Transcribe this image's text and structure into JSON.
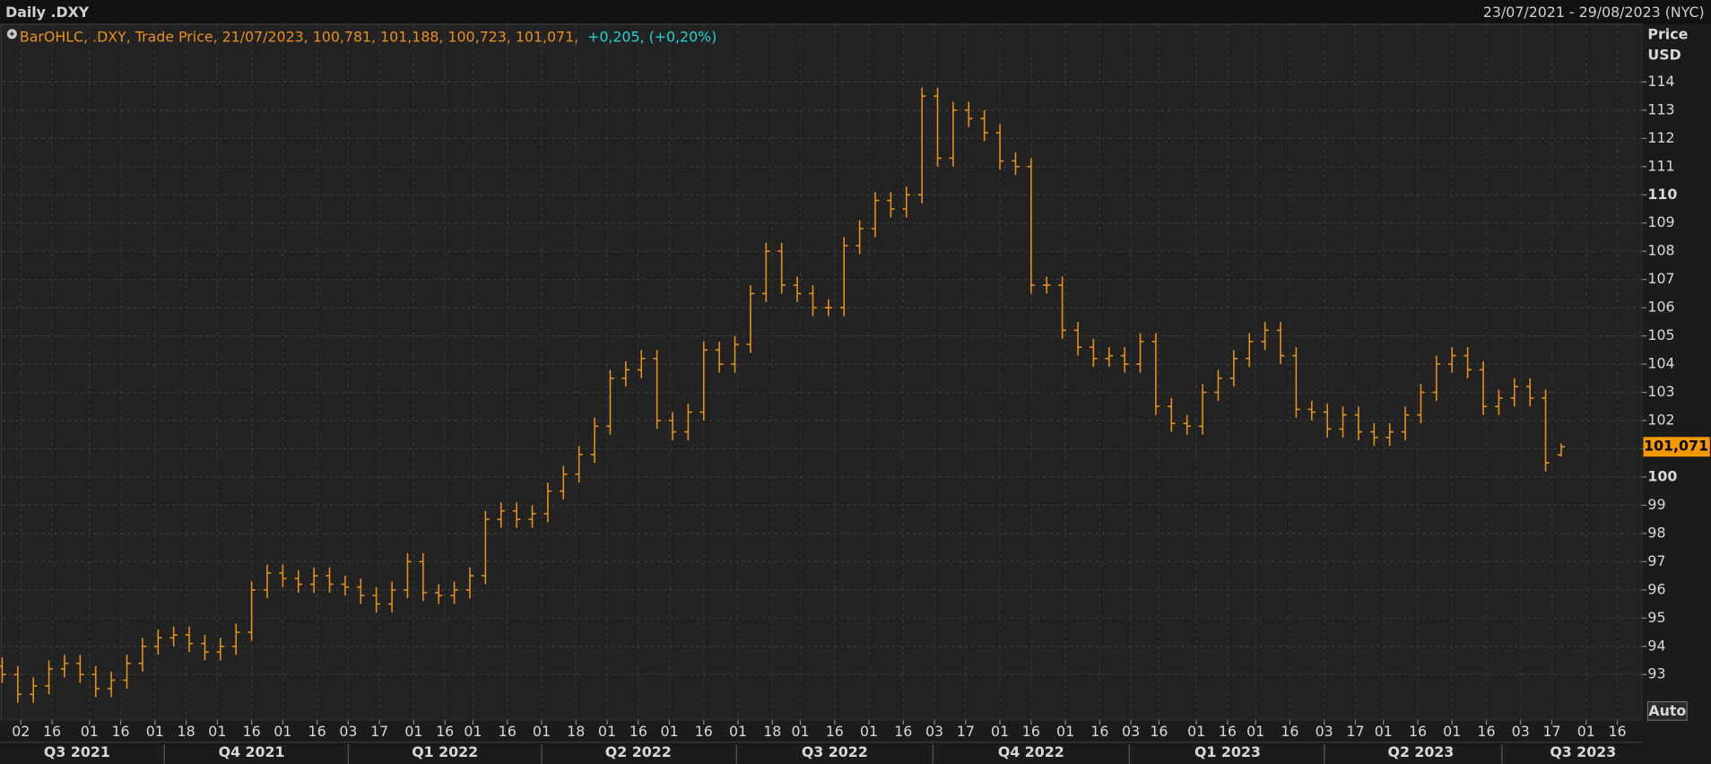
{
  "chart_data": {
    "type": "ohlc",
    "title": "Daily .DXY",
    "date_range": "23/07/2021 - 29/08/2023 (NYC)",
    "legend_text": "BarOHLC, .DXY, Trade Price, 21/07/2023, 100,781, 101,188, 100,723, 101,071,",
    "legend_change": "+0,205, (+0,20%)",
    "y_axis_label": "Price",
    "y_axis_unit": "USD",
    "button": "Auto",
    "color": "#e8901a",
    "grid": true,
    "last_price": {
      "value": 101.071,
      "label": "101,071"
    },
    "ylim": [
      91.38,
      116.05
    ],
    "yticks": [
      93,
      94,
      95,
      96,
      97,
      98,
      99,
      100,
      101,
      102,
      103,
      104,
      105,
      106,
      107,
      108,
      109,
      110,
      111,
      112,
      113,
      114
    ],
    "xlim": [
      0,
      526
    ],
    "xticks": [
      {
        "value": 6,
        "label": "02"
      },
      {
        "value": 16,
        "label": "16"
      },
      {
        "value": 28,
        "label": "01"
      },
      {
        "value": 38,
        "label": "16"
      },
      {
        "value": 49,
        "label": "01"
      },
      {
        "value": 59,
        "label": "18"
      },
      {
        "value": 69,
        "label": "01"
      },
      {
        "value": 80,
        "label": "16"
      },
      {
        "value": 90,
        "label": "01"
      },
      {
        "value": 101,
        "label": "16"
      },
      {
        "value": 111,
        "label": "03"
      },
      {
        "value": 121,
        "label": "17"
      },
      {
        "value": 132,
        "label": "01"
      },
      {
        "value": 142,
        "label": "16"
      },
      {
        "value": 151,
        "label": "01"
      },
      {
        "value": 162,
        "label": "16"
      },
      {
        "value": 173,
        "label": "01"
      },
      {
        "value": 184,
        "label": "18"
      },
      {
        "value": 194,
        "label": "01"
      },
      {
        "value": 204,
        "label": "16"
      },
      {
        "value": 214,
        "label": "01"
      },
      {
        "value": 225,
        "label": "16"
      },
      {
        "value": 236,
        "label": "01"
      },
      {
        "value": 247,
        "label": "18"
      },
      {
        "value": 256,
        "label": "01"
      },
      {
        "value": 267,
        "label": "16"
      },
      {
        "value": 278,
        "label": "01"
      },
      {
        "value": 289,
        "label": "16"
      },
      {
        "value": 299,
        "label": "03"
      },
      {
        "value": 309,
        "label": "17"
      },
      {
        "value": 320,
        "label": "01"
      },
      {
        "value": 330,
        "label": "16"
      },
      {
        "value": 341,
        "label": "01"
      },
      {
        "value": 352,
        "label": "16"
      },
      {
        "value": 362,
        "label": "03"
      },
      {
        "value": 371,
        "label": "16"
      },
      {
        "value": 383,
        "label": "01"
      },
      {
        "value": 393,
        "label": "16"
      },
      {
        "value": 402,
        "label": "01"
      },
      {
        "value": 413,
        "label": "16"
      },
      {
        "value": 424,
        "label": "03"
      },
      {
        "value": 434,
        "label": "17"
      },
      {
        "value": 443,
        "label": "01"
      },
      {
        "value": 454,
        "label": "16"
      },
      {
        "value": 465,
        "label": "01"
      },
      {
        "value": 476,
        "label": "16"
      },
      {
        "value": 487,
        "label": "03"
      },
      {
        "value": 497,
        "label": "17"
      },
      {
        "value": 508,
        "label": "01"
      },
      {
        "value": 518,
        "label": "16"
      }
    ],
    "quarters": [
      {
        "value": 24,
        "label": "Q3 2021"
      },
      {
        "value": 80,
        "label": "Q4 2021"
      },
      {
        "value": 142,
        "label": "Q1 2022"
      },
      {
        "value": 204,
        "label": "Q2 2022"
      },
      {
        "value": 267,
        "label": "Q3 2022"
      },
      {
        "value": 330,
        "label": "Q4 2022"
      },
      {
        "value": 393,
        "label": "Q1 2023"
      },
      {
        "value": 455,
        "label": "Q2 2023"
      },
      {
        "value": 507,
        "label": "Q3 2023"
      }
    ],
    "x": [
      0,
      5,
      10,
      15,
      20,
      25,
      30,
      35,
      40,
      45,
      50,
      55,
      60,
      65,
      70,
      75,
      80,
      85,
      90,
      95,
      100,
      105,
      110,
      115,
      120,
      125,
      130,
      135,
      140,
      145,
      150,
      155,
      160,
      165,
      170,
      175,
      180,
      185,
      190,
      195,
      200,
      205,
      210,
      215,
      220,
      225,
      230,
      235,
      240,
      245,
      250,
      255,
      260,
      265,
      270,
      275,
      280,
      285,
      290,
      295,
      300,
      305,
      310,
      315,
      320,
      325,
      330,
      335,
      340,
      345,
      350,
      355,
      360,
      365,
      370,
      375,
      380,
      385,
      390,
      395,
      400,
      405,
      410,
      415,
      420,
      425,
      430,
      435,
      440,
      445,
      450,
      455,
      460,
      465,
      470,
      475,
      480,
      485,
      490,
      495,
      500
    ],
    "open": [
      93.3,
      93.0,
      92.3,
      92.6,
      93.2,
      93.4,
      93.0,
      92.5,
      92.8,
      93.4,
      94.0,
      94.3,
      94.4,
      94.1,
      93.8,
      94.0,
      94.5,
      96.0,
      96.6,
      96.4,
      96.2,
      96.5,
      96.2,
      96.1,
      95.8,
      95.5,
      96.0,
      97.0,
      95.9,
      95.8,
      96.0,
      96.5,
      98.5,
      98.8,
      98.5,
      98.7,
      99.5,
      100.1,
      100.8,
      101.8,
      103.5,
      103.8,
      104.2,
      102.0,
      101.6,
      102.3,
      104.5,
      104.0,
      104.7,
      106.5,
      108.0,
      106.8,
      106.5,
      106.0,
      106.0,
      108.2,
      108.8,
      109.8,
      109.5,
      110.0,
      113.5,
      111.3,
      113.0,
      112.7,
      112.2,
      111.2,
      111.0,
      106.8,
      106.8,
      105.2,
      104.6,
      104.2,
      104.3,
      104.0,
      104.8,
      102.5,
      101.9,
      101.8,
      103.0,
      103.5,
      104.2,
      104.8,
      105.2,
      104.3,
      102.4,
      102.3,
      101.7,
      102.2,
      101.6,
      101.4,
      101.6,
      102.2,
      103.0,
      104.0,
      104.3,
      103.8,
      102.5,
      102.8,
      103.2,
      102.8,
      100.781
    ],
    "high": [
      93.6,
      93.3,
      92.9,
      93.5,
      93.7,
      93.7,
      93.3,
      93.1,
      93.7,
      94.3,
      94.6,
      94.7,
      94.7,
      94.4,
      94.3,
      94.8,
      96.3,
      96.9,
      96.9,
      96.7,
      96.8,
      96.8,
      96.5,
      96.4,
      96.1,
      96.3,
      97.3,
      97.3,
      96.2,
      96.3,
      96.8,
      98.8,
      99.1,
      99.1,
      99.0,
      99.8,
      100.4,
      101.1,
      102.1,
      103.8,
      104.1,
      104.5,
      104.5,
      102.3,
      102.6,
      104.8,
      104.8,
      105.0,
      106.8,
      108.3,
      108.3,
      107.1,
      106.8,
      106.3,
      108.5,
      109.1,
      110.1,
      110.1,
      110.3,
      113.8,
      113.8,
      113.3,
      113.3,
      113.0,
      112.5,
      111.5,
      111.3,
      107.1,
      107.1,
      105.5,
      104.9,
      104.6,
      104.6,
      105.1,
      105.1,
      102.8,
      102.2,
      103.3,
      103.8,
      104.5,
      105.1,
      105.5,
      105.5,
      104.6,
      102.7,
      102.6,
      102.5,
      102.5,
      101.9,
      101.9,
      102.5,
      103.3,
      104.3,
      104.6,
      104.6,
      104.1,
      103.1,
      103.5,
      103.5,
      103.1,
      101.188
    ],
    "low": [
      92.7,
      92.0,
      92.0,
      92.3,
      92.9,
      92.7,
      92.2,
      92.2,
      92.5,
      93.1,
      93.7,
      94.0,
      93.8,
      93.5,
      93.5,
      93.7,
      94.2,
      95.7,
      96.1,
      95.9,
      95.9,
      95.9,
      95.8,
      95.5,
      95.2,
      95.2,
      95.7,
      95.6,
      95.5,
      95.5,
      95.7,
      96.2,
      98.2,
      98.2,
      98.2,
      98.4,
      99.2,
      99.8,
      100.5,
      101.5,
      103.2,
      103.5,
      101.7,
      101.3,
      101.3,
      102.0,
      103.7,
      103.7,
      104.4,
      106.2,
      106.5,
      106.2,
      105.7,
      105.7,
      105.7,
      107.9,
      108.5,
      109.2,
      109.2,
      109.7,
      111.0,
      111.0,
      112.4,
      111.9,
      110.9,
      110.7,
      106.5,
      106.5,
      104.9,
      104.3,
      103.9,
      103.9,
      103.7,
      103.7,
      102.2,
      101.6,
      101.5,
      101.5,
      102.7,
      103.2,
      103.9,
      104.5,
      104.0,
      102.1,
      102.0,
      101.4,
      101.4,
      101.3,
      101.1,
      101.1,
      101.3,
      101.9,
      102.7,
      103.7,
      103.5,
      102.2,
      102.2,
      102.5,
      102.5,
      100.2,
      100.723
    ],
    "close": [
      93.0,
      92.3,
      92.6,
      93.2,
      93.4,
      93.0,
      92.5,
      92.8,
      93.4,
      94.0,
      94.3,
      94.4,
      94.1,
      93.8,
      94.0,
      94.5,
      96.0,
      96.6,
      96.4,
      96.2,
      96.5,
      96.2,
      96.1,
      95.8,
      95.5,
      96.0,
      97.0,
      95.9,
      95.8,
      96.0,
      96.5,
      98.5,
      98.8,
      98.5,
      98.7,
      99.5,
      100.1,
      100.8,
      101.8,
      103.5,
      103.8,
      104.2,
      102.0,
      101.6,
      102.3,
      104.5,
      104.0,
      104.7,
      106.5,
      108.0,
      106.8,
      106.5,
      106.0,
      106.0,
      108.2,
      108.8,
      109.8,
      109.5,
      110.0,
      113.5,
      111.3,
      113.0,
      112.7,
      112.2,
      111.2,
      111.0,
      106.8,
      106.8,
      105.2,
      104.6,
      104.2,
      104.3,
      104.0,
      104.8,
      102.5,
      101.9,
      101.8,
      103.0,
      103.5,
      104.2,
      104.8,
      105.2,
      104.3,
      102.4,
      102.3,
      101.7,
      102.2,
      101.6,
      101.4,
      101.6,
      102.2,
      103.0,
      104.0,
      104.3,
      103.8,
      102.5,
      102.8,
      103.2,
      102.8,
      100.5,
      101.071
    ]
  }
}
